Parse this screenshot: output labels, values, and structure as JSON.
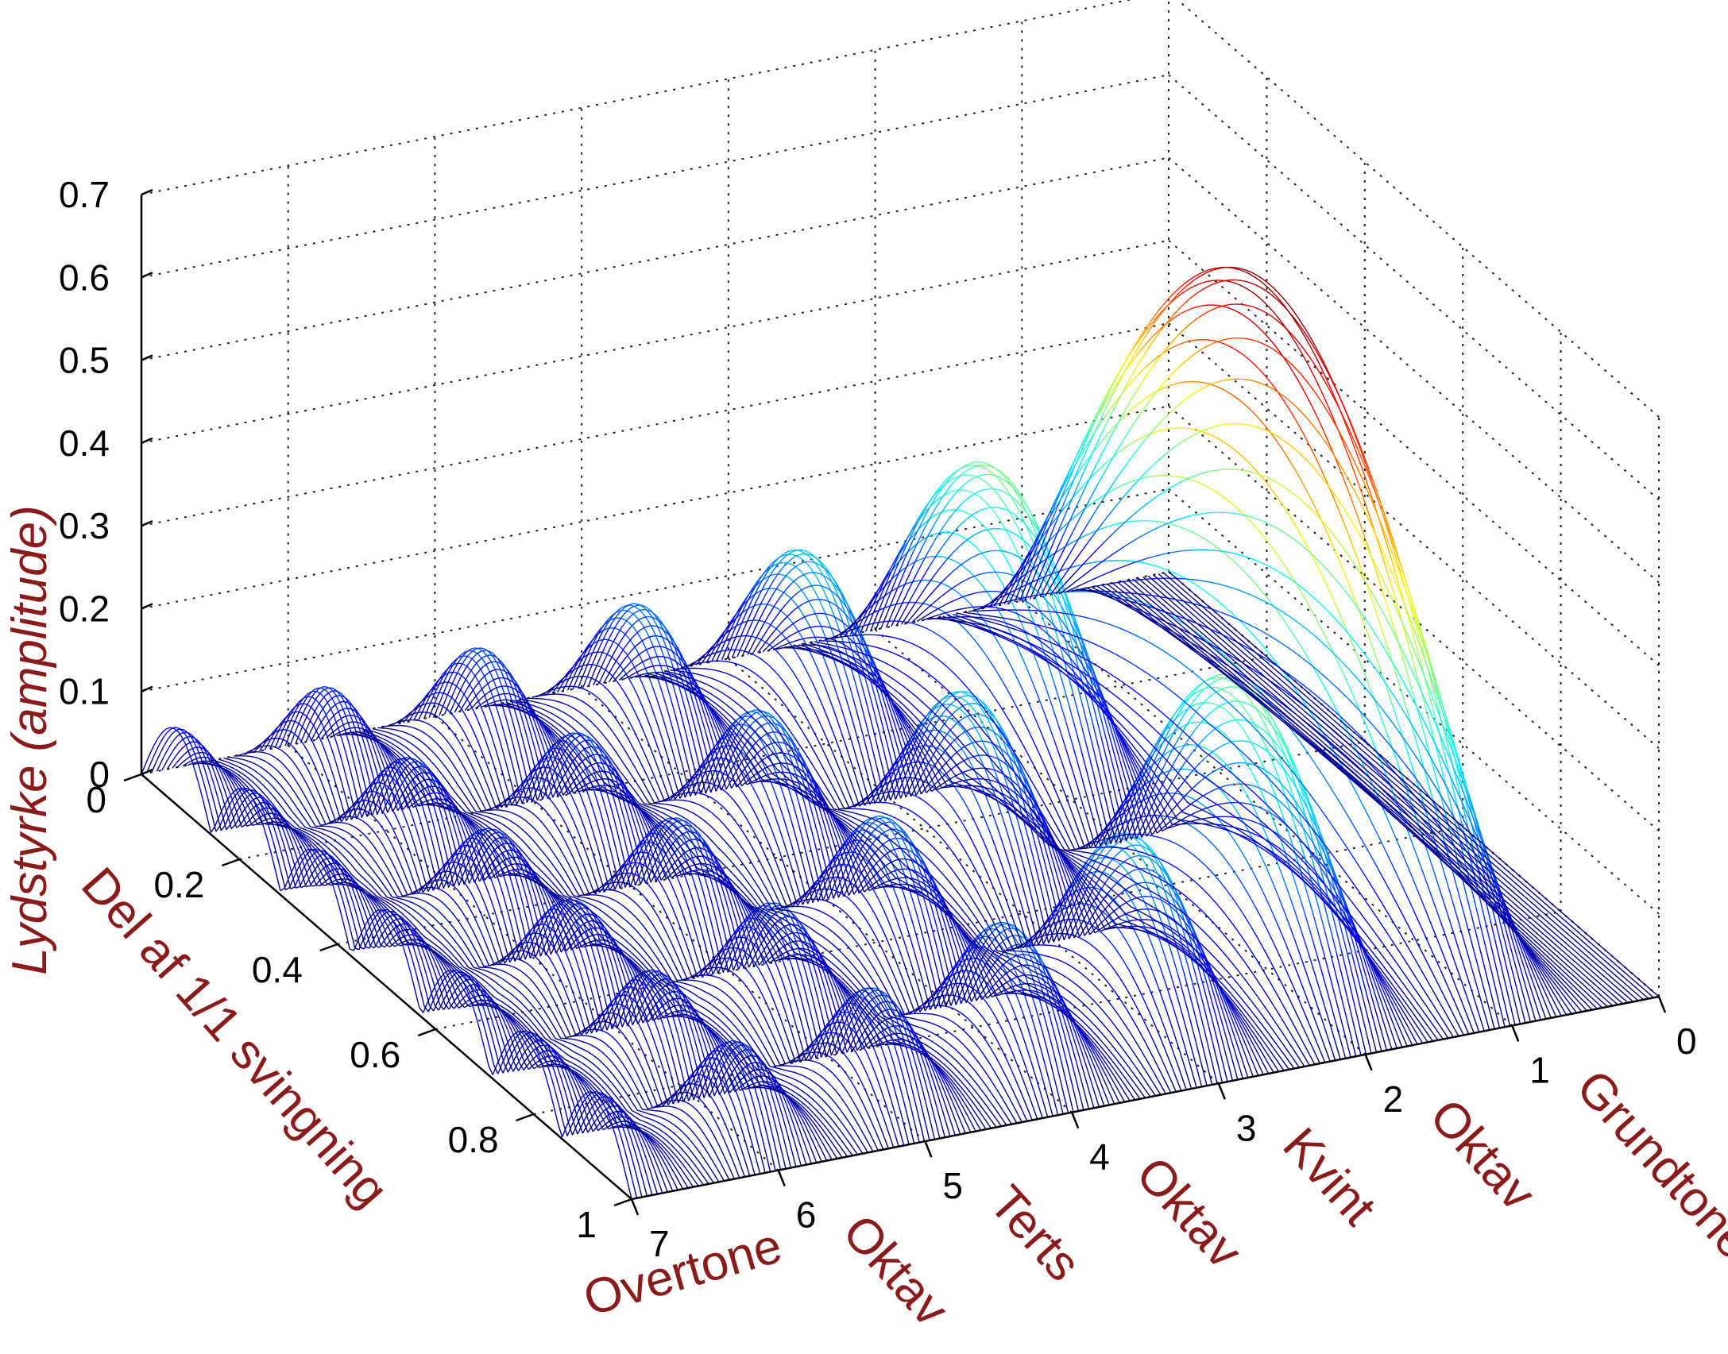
{
  "chart_data": {
    "type": "surface",
    "x_label": "Del af 1/1 svingning",
    "y_label": "Overtone",
    "z_label": "Lydstyrke (amplitude)",
    "x_ticks": [
      "0",
      "0.2",
      "0.4",
      "0.6",
      "0.8",
      "1"
    ],
    "y_ticks": [
      "0",
      "1",
      "2",
      "3",
      "4",
      "5",
      "6",
      "7"
    ],
    "z_ticks": [
      "0",
      "0.1",
      "0.2",
      "0.3",
      "0.4",
      "0.5",
      "0.6",
      "0.7"
    ],
    "xlim": [
      0,
      1
    ],
    "ylim": [
      0,
      7
    ],
    "zlim": [
      0,
      0.7
    ],
    "grid": true,
    "colormap": "jet",
    "harmonic_names": [
      "Grundtone",
      "Oktav",
      "Kvint",
      "Oktav",
      "Terts",
      "Oktav"
    ],
    "harmonic_name_positions": [
      1,
      2,
      3,
      4,
      5,
      6
    ],
    "harmonics": [
      {
        "n": 1,
        "peak": 0.64
      },
      {
        "n": 2,
        "peak": 0.32
      },
      {
        "n": 3,
        "peak": 0.21
      },
      {
        "n": 4,
        "peak": 0.16
      },
      {
        "n": 5,
        "peak": 0.13
      },
      {
        "n": 6,
        "peak": 0.11
      },
      {
        "n": 7,
        "peak": 0.09
      }
    ]
  }
}
